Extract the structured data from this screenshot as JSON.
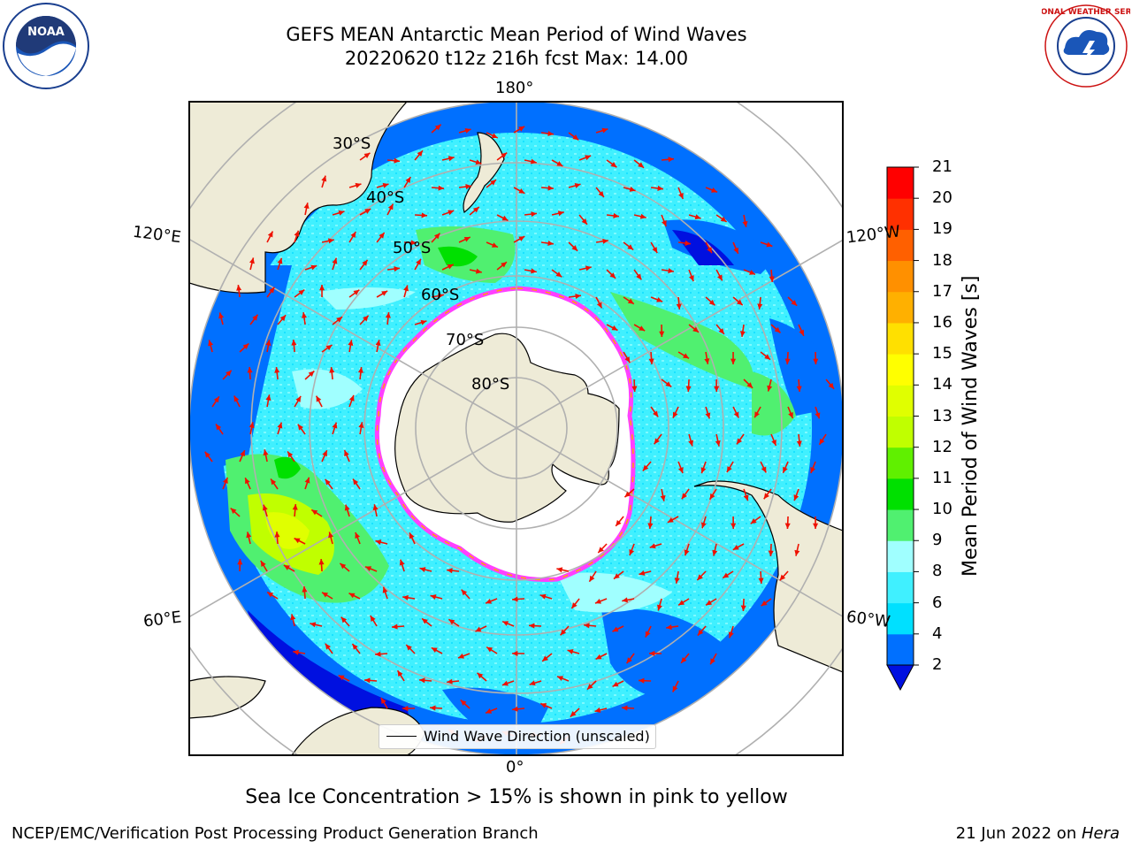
{
  "title": {
    "line1": "GEFS MEAN Antarctic Mean Period of Wind Waves",
    "line2": "20220620 t12z 216h fcst   Max: 14.00"
  },
  "logos": {
    "left": "NOAA",
    "right": "NATIONAL WEATHER SERVICE"
  },
  "map": {
    "projection": "south polar stereographic",
    "longitude_labels": {
      "top": "180°",
      "bottom": "0°",
      "left_upper": "120°E",
      "left_lower": "60°E",
      "right_upper": "120°W",
      "right_lower": "60°W"
    },
    "latitude_labels": [
      "30°S",
      "40°S",
      "50°S",
      "60°S",
      "70°S",
      "80°S"
    ],
    "legend": "Wind Wave Direction (unscaled)",
    "colors": {
      "land": "#eeebd7",
      "sea_ice": "#ffffff",
      "ice_edge_pink": "#ff40ff",
      "ice_edge_orange": "#ffa500",
      "arrow": "#ee1100"
    }
  },
  "colorbar": {
    "label": "Mean Period of Wind Waves [s]",
    "ticks": [
      "2",
      "4",
      "6",
      "8",
      "9",
      "10",
      "11",
      "12",
      "13",
      "14",
      "15",
      "16",
      "17",
      "18",
      "19",
      "20",
      "21"
    ],
    "colors": [
      "#0070ff",
      "#00e0ff",
      "#40f0ff",
      "#a0ffff",
      "#50f070",
      "#00e000",
      "#60f000",
      "#c0ff00",
      "#e0ff00",
      "#ffff00",
      "#ffe000",
      "#ffb000",
      "#ff9000",
      "#ff6000",
      "#ff3000",
      "#ff0000"
    ],
    "under_color": "#0010e0"
  },
  "caption": "Sea Ice Concentration > 15% is shown in pink to yellow",
  "footer": {
    "left": "NCEP/EMC/Verification Post Processing Product Generation Branch",
    "right_date": "21 Jun 2022 on ",
    "right_machine": "Hera"
  }
}
